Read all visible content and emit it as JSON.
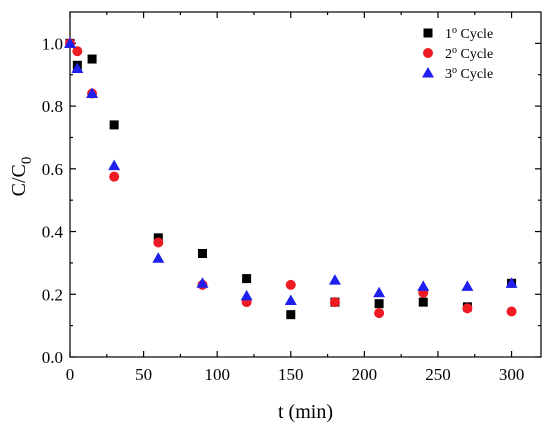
{
  "chart_data": {
    "type": "scatter",
    "xlabel": "t (min)",
    "ylabel": "C/C0",
    "ylabel_main": "C/C",
    "ylabel_sub": "0",
    "xlim": [
      0,
      320
    ],
    "ylim": [
      0,
      1.1
    ],
    "xticks": [
      0,
      50,
      100,
      150,
      200,
      250,
      300
    ],
    "yticks": [
      0.0,
      0.2,
      0.4,
      0.6,
      0.8,
      1.0
    ],
    "xtick_labels": [
      "0",
      "50",
      "100",
      "150",
      "200",
      "250",
      "300"
    ],
    "ytick_labels": [
      "0.0",
      "0.2",
      "0.4",
      "0.6",
      "0.8",
      "1.0"
    ],
    "grid": false,
    "legend_position": "top-right",
    "series": [
      {
        "name": "1º Cycle",
        "label_prefix": "1",
        "label_sup": "o",
        "label_suffix": " Cycle",
        "marker": "square",
        "color": "#000000",
        "x": [
          0,
          5,
          15,
          30,
          60,
          90,
          120,
          150,
          180,
          210,
          240,
          270,
          300
        ],
        "y": [
          1.0,
          0.93,
          0.95,
          0.74,
          0.38,
          0.33,
          0.25,
          0.135,
          0.175,
          0.17,
          0.175,
          0.16,
          0.235
        ]
      },
      {
        "name": "2º Cycle",
        "label_prefix": "2",
        "label_sup": "o",
        "label_suffix": " Cycle",
        "marker": "circle",
        "color": "#ee1b24",
        "x": [
          0,
          5,
          15,
          30,
          60,
          90,
          120,
          150,
          180,
          210,
          240,
          270,
          300
        ],
        "y": [
          1.0,
          0.975,
          0.84,
          0.575,
          0.365,
          0.23,
          0.175,
          0.23,
          0.175,
          0.14,
          0.205,
          0.155,
          0.145
        ]
      },
      {
        "name": "3º Cycle",
        "label_prefix": "3",
        "label_sup": "o",
        "label_suffix": " Cycle",
        "marker": "triangle",
        "color": "#1f1fee",
        "x": [
          0,
          5,
          15,
          30,
          60,
          90,
          120,
          150,
          180,
          210,
          240,
          270,
          300
        ],
        "y": [
          1.0,
          0.92,
          0.84,
          0.61,
          0.315,
          0.235,
          0.195,
          0.18,
          0.245,
          0.205,
          0.225,
          0.225,
          0.235
        ]
      }
    ]
  }
}
